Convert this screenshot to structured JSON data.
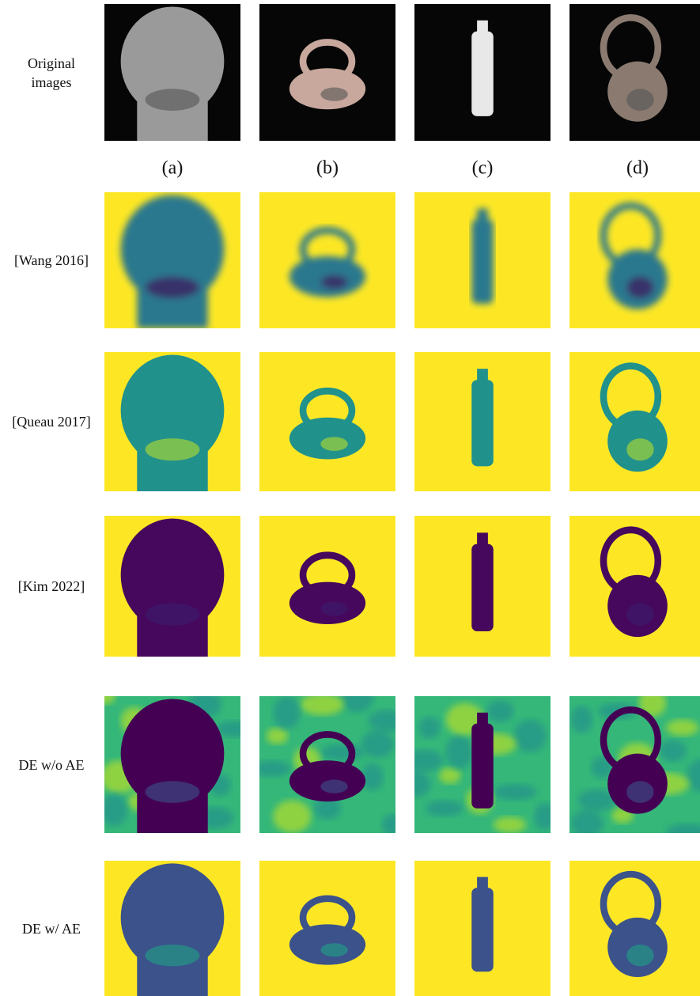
{
  "column_labels": [
    "(a)",
    "(b)",
    "(c)",
    "(d)"
  ],
  "row_labels": [
    "Original images",
    "[Wang 2016]",
    "[Queau 2017]",
    "[Kim 2022]",
    "DE  w/o AE",
    "DE w/ AE"
  ]
}
